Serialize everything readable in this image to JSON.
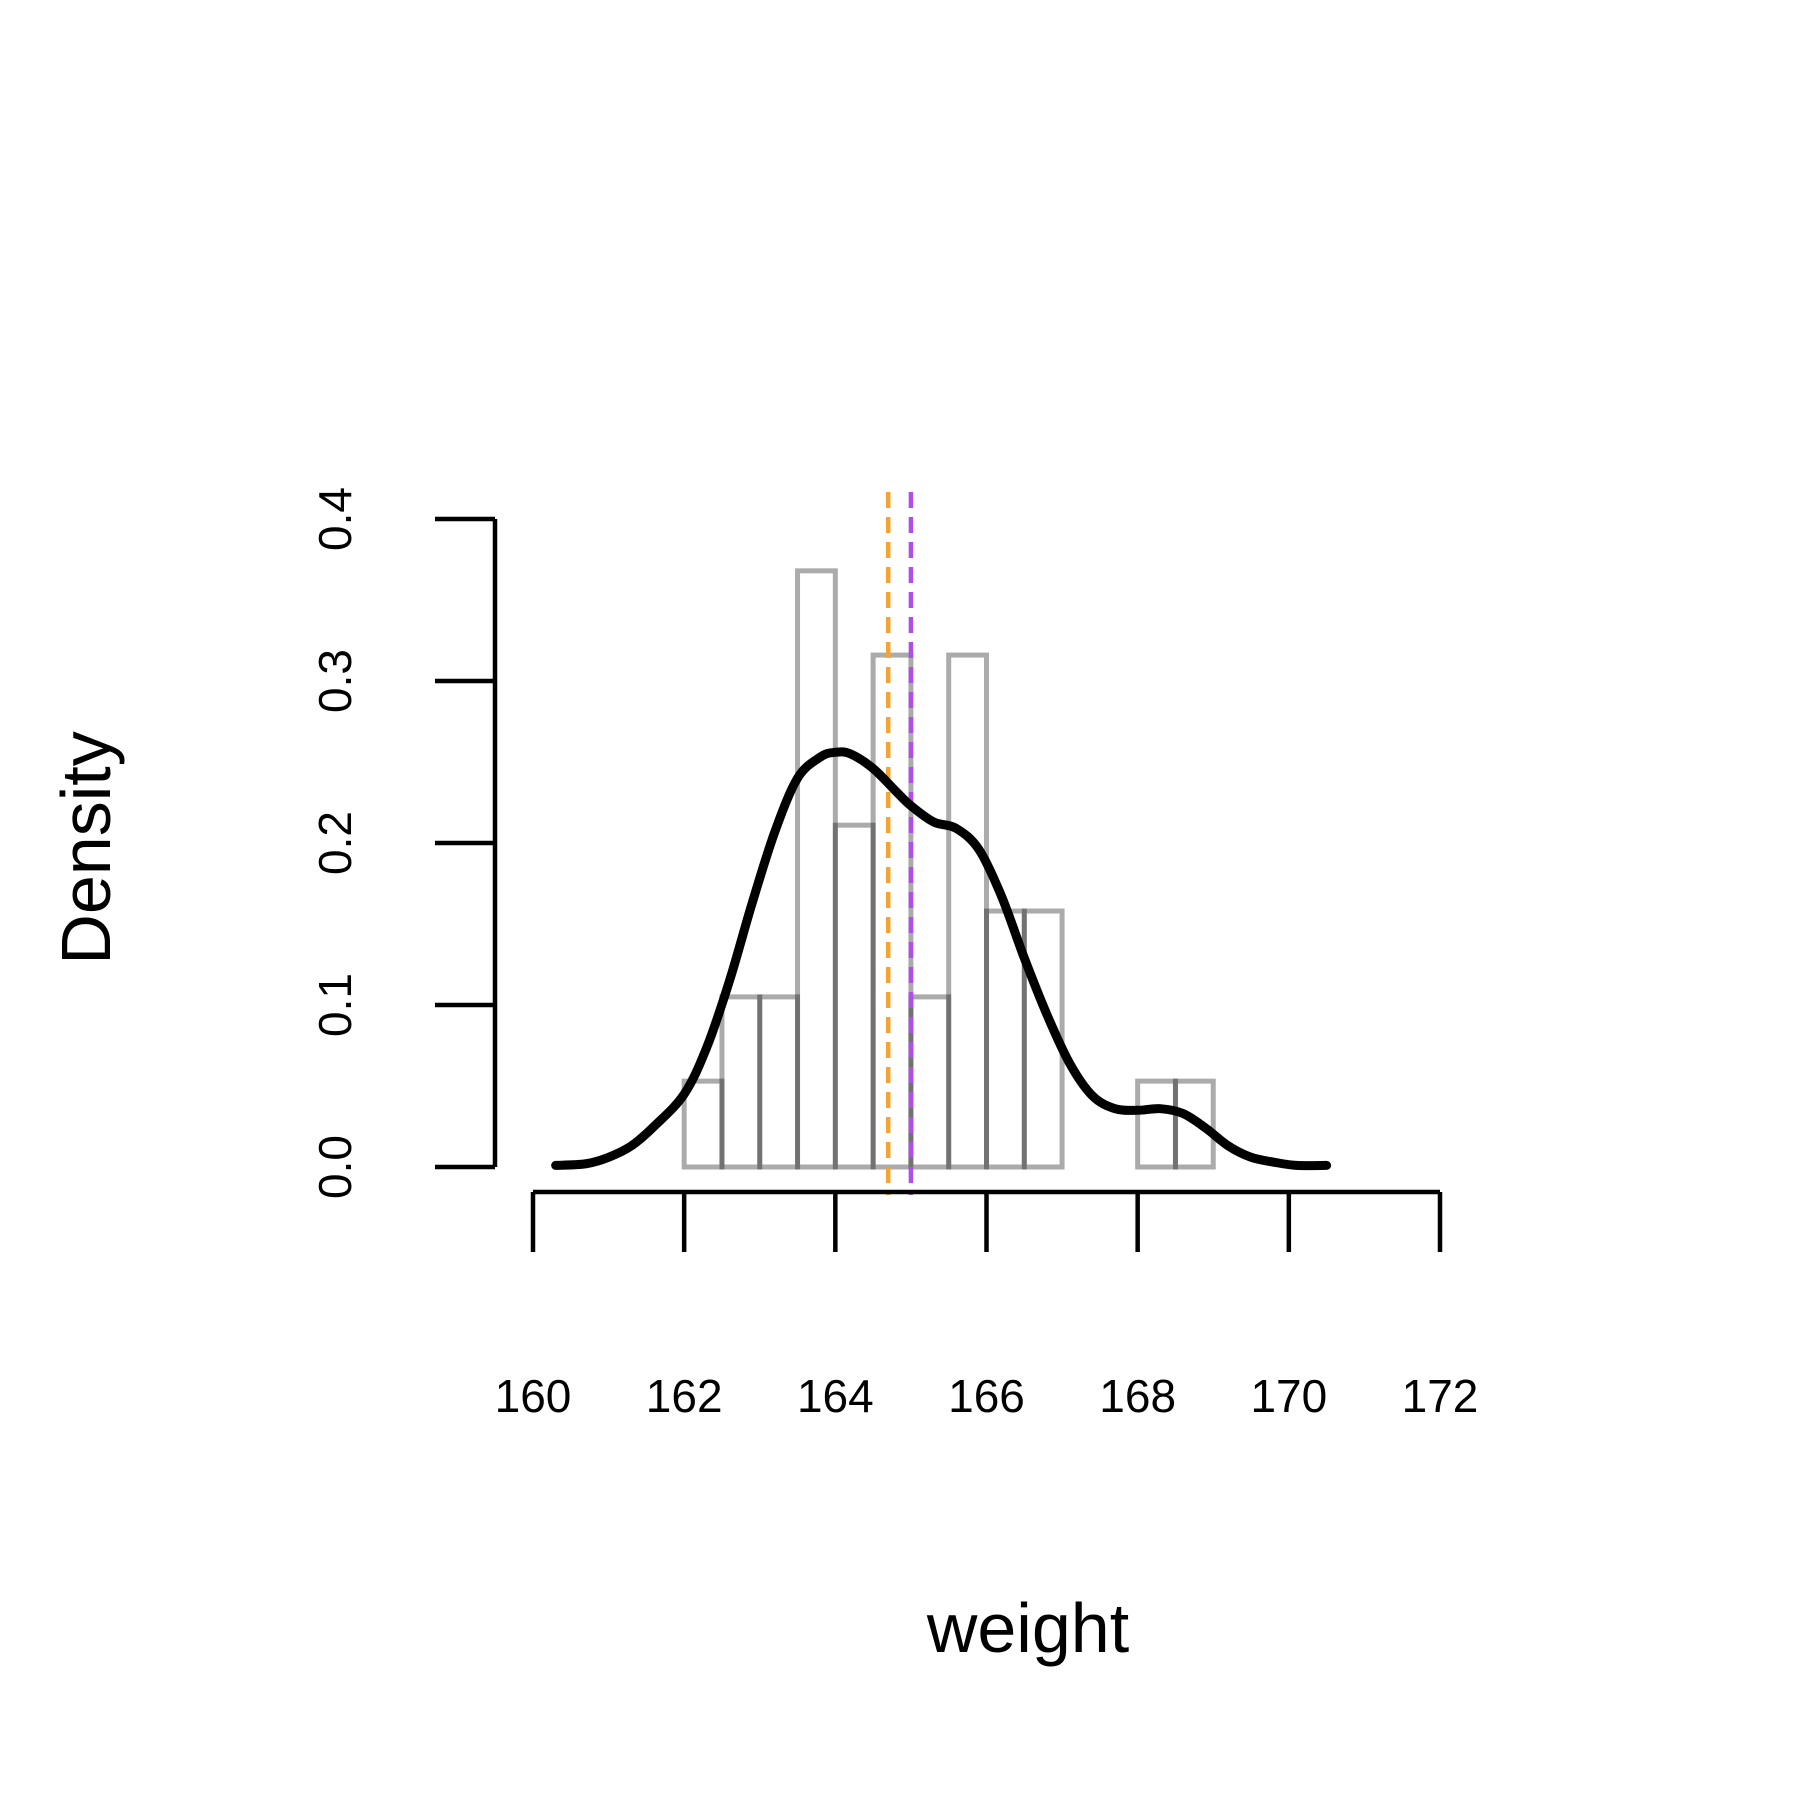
{
  "chart_data": {
    "type": "bar",
    "xlabel": "weight",
    "ylabel": "Density",
    "x_ticks": [
      160,
      162,
      164,
      166,
      168,
      170,
      172
    ],
    "y_ticks": [
      "0.0",
      "0.1",
      "0.2",
      "0.3",
      "0.4"
    ],
    "xlim": [
      160,
      172
    ],
    "ylim": [
      0,
      0.4
    ],
    "grid": false,
    "histogram": {
      "bin_width": 0.5,
      "bins": [
        {
          "x0": 162.0,
          "x1": 162.5,
          "density": 0.053
        },
        {
          "x0": 162.5,
          "x1": 163.0,
          "density": 0.105
        },
        {
          "x0": 163.0,
          "x1": 163.5,
          "density": 0.105
        },
        {
          "x0": 163.5,
          "x1": 164.0,
          "density": 0.368
        },
        {
          "x0": 164.0,
          "x1": 164.5,
          "density": 0.211
        },
        {
          "x0": 164.5,
          "x1": 165.0,
          "density": 0.316
        },
        {
          "x0": 165.0,
          "x1": 165.5,
          "density": 0.105
        },
        {
          "x0": 165.5,
          "x1": 166.0,
          "density": 0.316
        },
        {
          "x0": 166.0,
          "x1": 166.5,
          "density": 0.158
        },
        {
          "x0": 166.5,
          "x1": 167.0,
          "density": 0.158
        },
        {
          "x0": 167.0,
          "x1": 167.5,
          "density": 0.0
        },
        {
          "x0": 167.5,
          "x1": 168.0,
          "density": 0.0
        },
        {
          "x0": 168.0,
          "x1": 168.5,
          "density": 0.053
        },
        {
          "x0": 168.5,
          "x1": 169.0,
          "density": 0.053
        }
      ]
    },
    "density_curve": {
      "x": [
        160.3,
        160.7,
        161.0,
        161.3,
        161.6,
        162.0,
        162.3,
        162.6,
        162.9,
        163.2,
        163.5,
        163.8,
        164.0,
        164.2,
        164.5,
        164.8,
        165.0,
        165.3,
        165.6,
        165.9,
        166.2,
        166.5,
        166.8,
        167.1,
        167.4,
        167.7,
        168.0,
        168.3,
        168.6,
        168.9,
        169.2,
        169.5,
        169.8,
        170.1,
        170.5
      ],
      "y": [
        0.001,
        0.002,
        0.006,
        0.013,
        0.025,
        0.045,
        0.074,
        0.115,
        0.163,
        0.207,
        0.24,
        0.253,
        0.256,
        0.255,
        0.246,
        0.232,
        0.223,
        0.213,
        0.209,
        0.196,
        0.167,
        0.129,
        0.094,
        0.064,
        0.044,
        0.036,
        0.035,
        0.036,
        0.033,
        0.024,
        0.013,
        0.006,
        0.003,
        0.001,
        0.001
      ]
    },
    "reference_lines": [
      {
        "x": 164.7,
        "color": "#f5a431",
        "style": "dashed"
      },
      {
        "x": 165.0,
        "color": "#b04fe8",
        "style": "dashed"
      }
    ]
  }
}
